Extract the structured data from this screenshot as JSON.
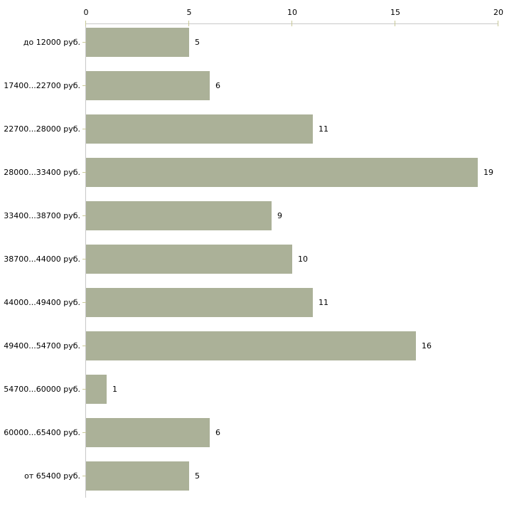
{
  "chart_data": {
    "type": "bar",
    "orientation": "horizontal",
    "title": "",
    "xlabel": "",
    "ylabel": "",
    "xlim": [
      0,
      20
    ],
    "x_ticks": [
      0,
      5,
      10,
      15,
      20
    ],
    "x_axis_position": "top",
    "grid": false,
    "legend": false,
    "categories": [
      "до 12000 руб.",
      "17400...22700 руб.",
      "22700...28000 руб.",
      "28000...33400 руб.",
      "33400...38700 руб.",
      "38700...44000 руб.",
      "44000...49400 руб.",
      "49400...54700 руб.",
      "54700...60000 руб.",
      "60000...65400 руб.",
      "от 65400 руб."
    ],
    "values": [
      5,
      6,
      11,
      19,
      9,
      10,
      11,
      16,
      1,
      6,
      5
    ],
    "colors": {
      "bar_fill": "#abb198",
      "axis_line": "#c8c8c8",
      "tick_mark": "#c8c896",
      "label_text": "#000000",
      "background": "#ffffff"
    }
  }
}
